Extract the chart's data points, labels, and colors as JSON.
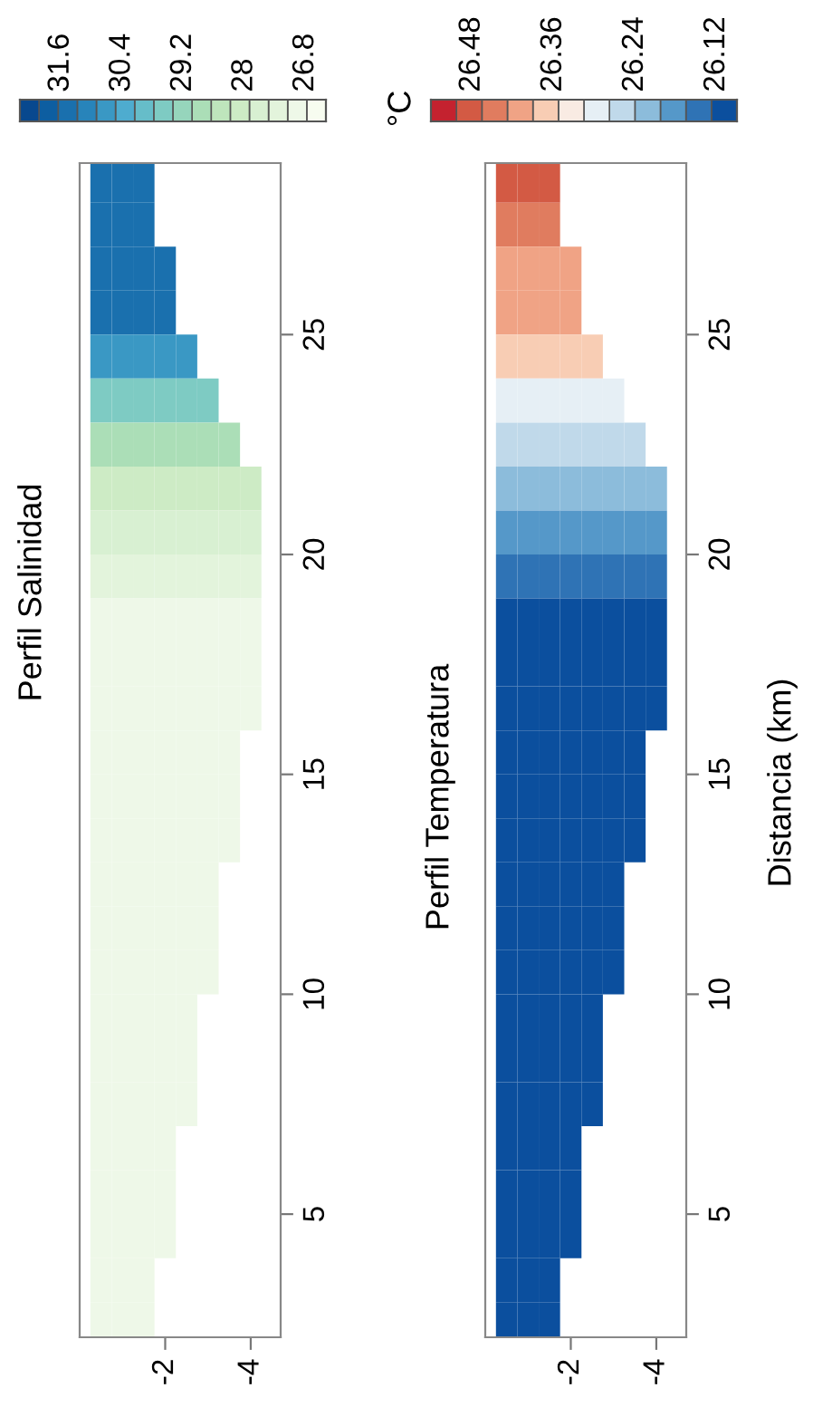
{
  "chart_data": [
    {
      "type": "heatmap",
      "title": "Perfil Salinidad",
      "x": [
        -0.5,
        -1.0,
        -1.5,
        -2.0,
        -2.5,
        -3.0,
        -3.5,
        -4.0
      ],
      "y": [
        28.5,
        27.5,
        26.5,
        25.5,
        24.5,
        23.5,
        22.5,
        21.5,
        20.5,
        19.5,
        18.5,
        17.5,
        16.5,
        15.5,
        14.5,
        13.5,
        12.5,
        11.5,
        10.5,
        9.5,
        8.5,
        7.5,
        6.5,
        5.5,
        4.5,
        3.5,
        2.5
      ],
      "cells": [
        [
          31.5,
          31.5,
          31.5,
          null,
          null,
          null,
          null,
          null
        ],
        [
          31.5,
          31.5,
          31.5,
          null,
          null,
          null,
          null,
          null
        ],
        [
          31.5,
          31.5,
          31.5,
          31.5,
          null,
          null,
          null,
          null
        ],
        [
          31.3,
          31.3,
          31.3,
          31.3,
          null,
          null,
          null,
          null
        ],
        [
          30.8,
          30.8,
          30.8,
          30.8,
          30.8,
          null,
          null,
          null
        ],
        [
          29.6,
          29.6,
          29.6,
          29.6,
          29.6,
          29.6,
          null,
          null
        ],
        [
          28.7,
          28.7,
          28.7,
          28.7,
          28.7,
          28.7,
          28.7,
          null
        ],
        [
          28.0,
          28.0,
          28.0,
          28.0,
          28.0,
          28.0,
          28.0,
          28.0
        ],
        [
          27.6,
          27.6,
          27.6,
          27.6,
          27.6,
          27.6,
          27.6,
          27.6
        ],
        [
          27.3,
          27.3,
          27.3,
          27.3,
          27.3,
          27.3,
          27.3,
          27.3
        ],
        [
          27.1,
          27.1,
          27.1,
          27.1,
          27.1,
          27.1,
          27.1,
          27.1
        ],
        [
          26.9,
          26.9,
          26.9,
          26.9,
          26.9,
          26.9,
          26.9,
          26.9
        ],
        [
          26.9,
          26.9,
          26.9,
          26.9,
          26.9,
          26.9,
          26.9,
          26.9
        ],
        [
          26.9,
          26.9,
          26.9,
          26.9,
          26.9,
          26.9,
          26.9,
          null
        ],
        [
          26.9,
          26.9,
          26.9,
          26.9,
          26.9,
          26.9,
          26.9,
          null
        ],
        [
          26.9,
          26.9,
          26.9,
          26.9,
          26.9,
          26.9,
          26.9,
          null
        ],
        [
          26.9,
          26.9,
          26.9,
          26.9,
          26.9,
          26.9,
          null,
          null
        ],
        [
          26.9,
          26.9,
          26.9,
          26.9,
          26.9,
          26.9,
          null,
          null
        ],
        [
          26.9,
          26.9,
          26.9,
          26.9,
          26.9,
          26.9,
          null,
          null
        ],
        [
          26.9,
          26.9,
          26.9,
          26.9,
          26.9,
          null,
          null,
          null
        ],
        [
          26.9,
          26.9,
          26.9,
          26.9,
          26.9,
          null,
          null,
          null
        ],
        [
          26.9,
          26.9,
          26.9,
          26.9,
          26.9,
          null,
          null,
          null
        ],
        [
          26.9,
          26.9,
          26.9,
          26.9,
          null,
          null,
          null,
          null
        ],
        [
          26.9,
          26.9,
          26.9,
          26.9,
          null,
          null,
          null,
          null
        ],
        [
          26.9,
          26.9,
          26.9,
          26.9,
          null,
          null,
          null,
          null
        ],
        [
          26.9,
          26.9,
          26.9,
          null,
          null,
          null,
          null,
          null
        ],
        [
          26.9,
          26.9,
          26.9,
          null,
          null,
          null,
          null,
          null
        ]
      ],
      "colors": [
        "#f7fcf0",
        "#eef8e8",
        "#e3f4dc",
        "#d8f0d2",
        "#cdebc5",
        "#bee5bc",
        "#abdeb7",
        "#96d5bc",
        "#7ecbc3",
        "#66bdc9",
        "#4eaccf",
        "#3a98c4",
        "#2884ba",
        "#1a70ae",
        "#0d5ea1",
        "#08488e"
      ],
      "clim": [
        26.4,
        32.4
      ],
      "cticks": [
        31.6,
        30.4,
        29.2,
        28,
        26.8
      ],
      "xlim": [
        0,
        -4.7
      ],
      "xticks": [
        -2,
        -4
      ],
      "ylim": [
        2.2,
        28.9
      ],
      "yticks": [
        5,
        10,
        15,
        20,
        25
      ]
    },
    {
      "type": "heatmap",
      "title": "Perfil Temperatura",
      "ylabel": "Distancia (km)",
      "clabel": "°C",
      "x": [
        -0.5,
        -1.0,
        -1.5,
        -2.0,
        -2.5,
        -3.0,
        -3.5,
        -4.0
      ],
      "y": [
        28.5,
        27.5,
        26.5,
        25.5,
        24.5,
        23.5,
        22.5,
        21.5,
        20.5,
        19.5,
        18.5,
        17.5,
        16.5,
        15.5,
        14.5,
        13.5,
        12.5,
        11.5,
        10.5,
        9.5,
        8.5,
        7.5,
        6.5,
        5.5,
        4.5,
        3.5,
        2.5
      ],
      "cells": [
        [
          26.47,
          26.47,
          26.47,
          null,
          null,
          null,
          null,
          null
        ],
        [
          26.44,
          26.44,
          26.44,
          null,
          null,
          null,
          null,
          null
        ],
        [
          26.41,
          26.41,
          26.41,
          26.41,
          null,
          null,
          null,
          null
        ],
        [
          26.41,
          26.41,
          26.41,
          26.41,
          null,
          null,
          null,
          null
        ],
        [
          26.36,
          26.36,
          26.36,
          26.36,
          26.36,
          null,
          null,
          null
        ],
        [
          26.31,
          26.31,
          26.31,
          26.31,
          26.31,
          26.31,
          null,
          null
        ],
        [
          26.26,
          26.26,
          26.26,
          26.26,
          26.26,
          26.26,
          26.26,
          null
        ],
        [
          26.21,
          26.21,
          26.21,
          26.21,
          26.21,
          26.21,
          26.21,
          26.21
        ],
        [
          26.17,
          26.17,
          26.17,
          26.17,
          26.17,
          26.17,
          26.17,
          26.17
        ],
        [
          26.14,
          26.14,
          26.14,
          26.14,
          26.14,
          26.14,
          26.14,
          26.14
        ],
        [
          26.1,
          26.1,
          26.1,
          26.1,
          26.1,
          26.1,
          26.1,
          26.1
        ],
        [
          26.1,
          26.1,
          26.1,
          26.1,
          26.1,
          26.1,
          26.1,
          26.1
        ],
        [
          26.1,
          26.1,
          26.1,
          26.1,
          26.1,
          26.1,
          26.1,
          26.1
        ],
        [
          26.1,
          26.1,
          26.1,
          26.1,
          26.1,
          26.1,
          26.1,
          null
        ],
        [
          26.1,
          26.1,
          26.1,
          26.1,
          26.1,
          26.1,
          26.1,
          null
        ],
        [
          26.1,
          26.1,
          26.1,
          26.1,
          26.1,
          26.1,
          26.1,
          null
        ],
        [
          26.1,
          26.1,
          26.1,
          26.1,
          26.1,
          26.1,
          null,
          null
        ],
        [
          26.1,
          26.1,
          26.1,
          26.1,
          26.1,
          26.1,
          null,
          null
        ],
        [
          26.1,
          26.1,
          26.1,
          26.1,
          26.1,
          26.1,
          null,
          null
        ],
        [
          26.1,
          26.1,
          26.1,
          26.1,
          26.1,
          null,
          null,
          null
        ],
        [
          26.1,
          26.1,
          26.1,
          26.1,
          26.1,
          null,
          null,
          null
        ],
        [
          26.1,
          26.1,
          26.1,
          26.1,
          26.1,
          null,
          null,
          null
        ],
        [
          26.1,
          26.1,
          26.1,
          26.1,
          null,
          null,
          null,
          null
        ],
        [
          26.1,
          26.1,
          26.1,
          26.1,
          null,
          null,
          null,
          null
        ],
        [
          26.1,
          26.1,
          26.1,
          26.1,
          null,
          null,
          null,
          null
        ],
        [
          26.1,
          26.1,
          26.1,
          null,
          null,
          null,
          null,
          null
        ],
        [
          26.1,
          26.1,
          26.1,
          null,
          null,
          null,
          null,
          null
        ]
      ],
      "colors": [
        "#0b4f9e",
        "#2f73b5",
        "#5598c9",
        "#8cbcdb",
        "#c0d9ea",
        "#e6eff5",
        "#f9ebe3",
        "#f8cdb4",
        "#f0a385",
        "#e07c5f",
        "#d35a44",
        "#c4222f"
      ],
      "clim": [
        26.09,
        26.54
      ],
      "cticks": [
        26.48,
        26.36,
        26.24,
        26.12
      ],
      "xlim": [
        0,
        -4.7
      ],
      "xticks": [
        -2,
        -4
      ],
      "ylim": [
        2.2,
        28.9
      ],
      "yticks": [
        5,
        10,
        15,
        20,
        25
      ]
    }
  ]
}
